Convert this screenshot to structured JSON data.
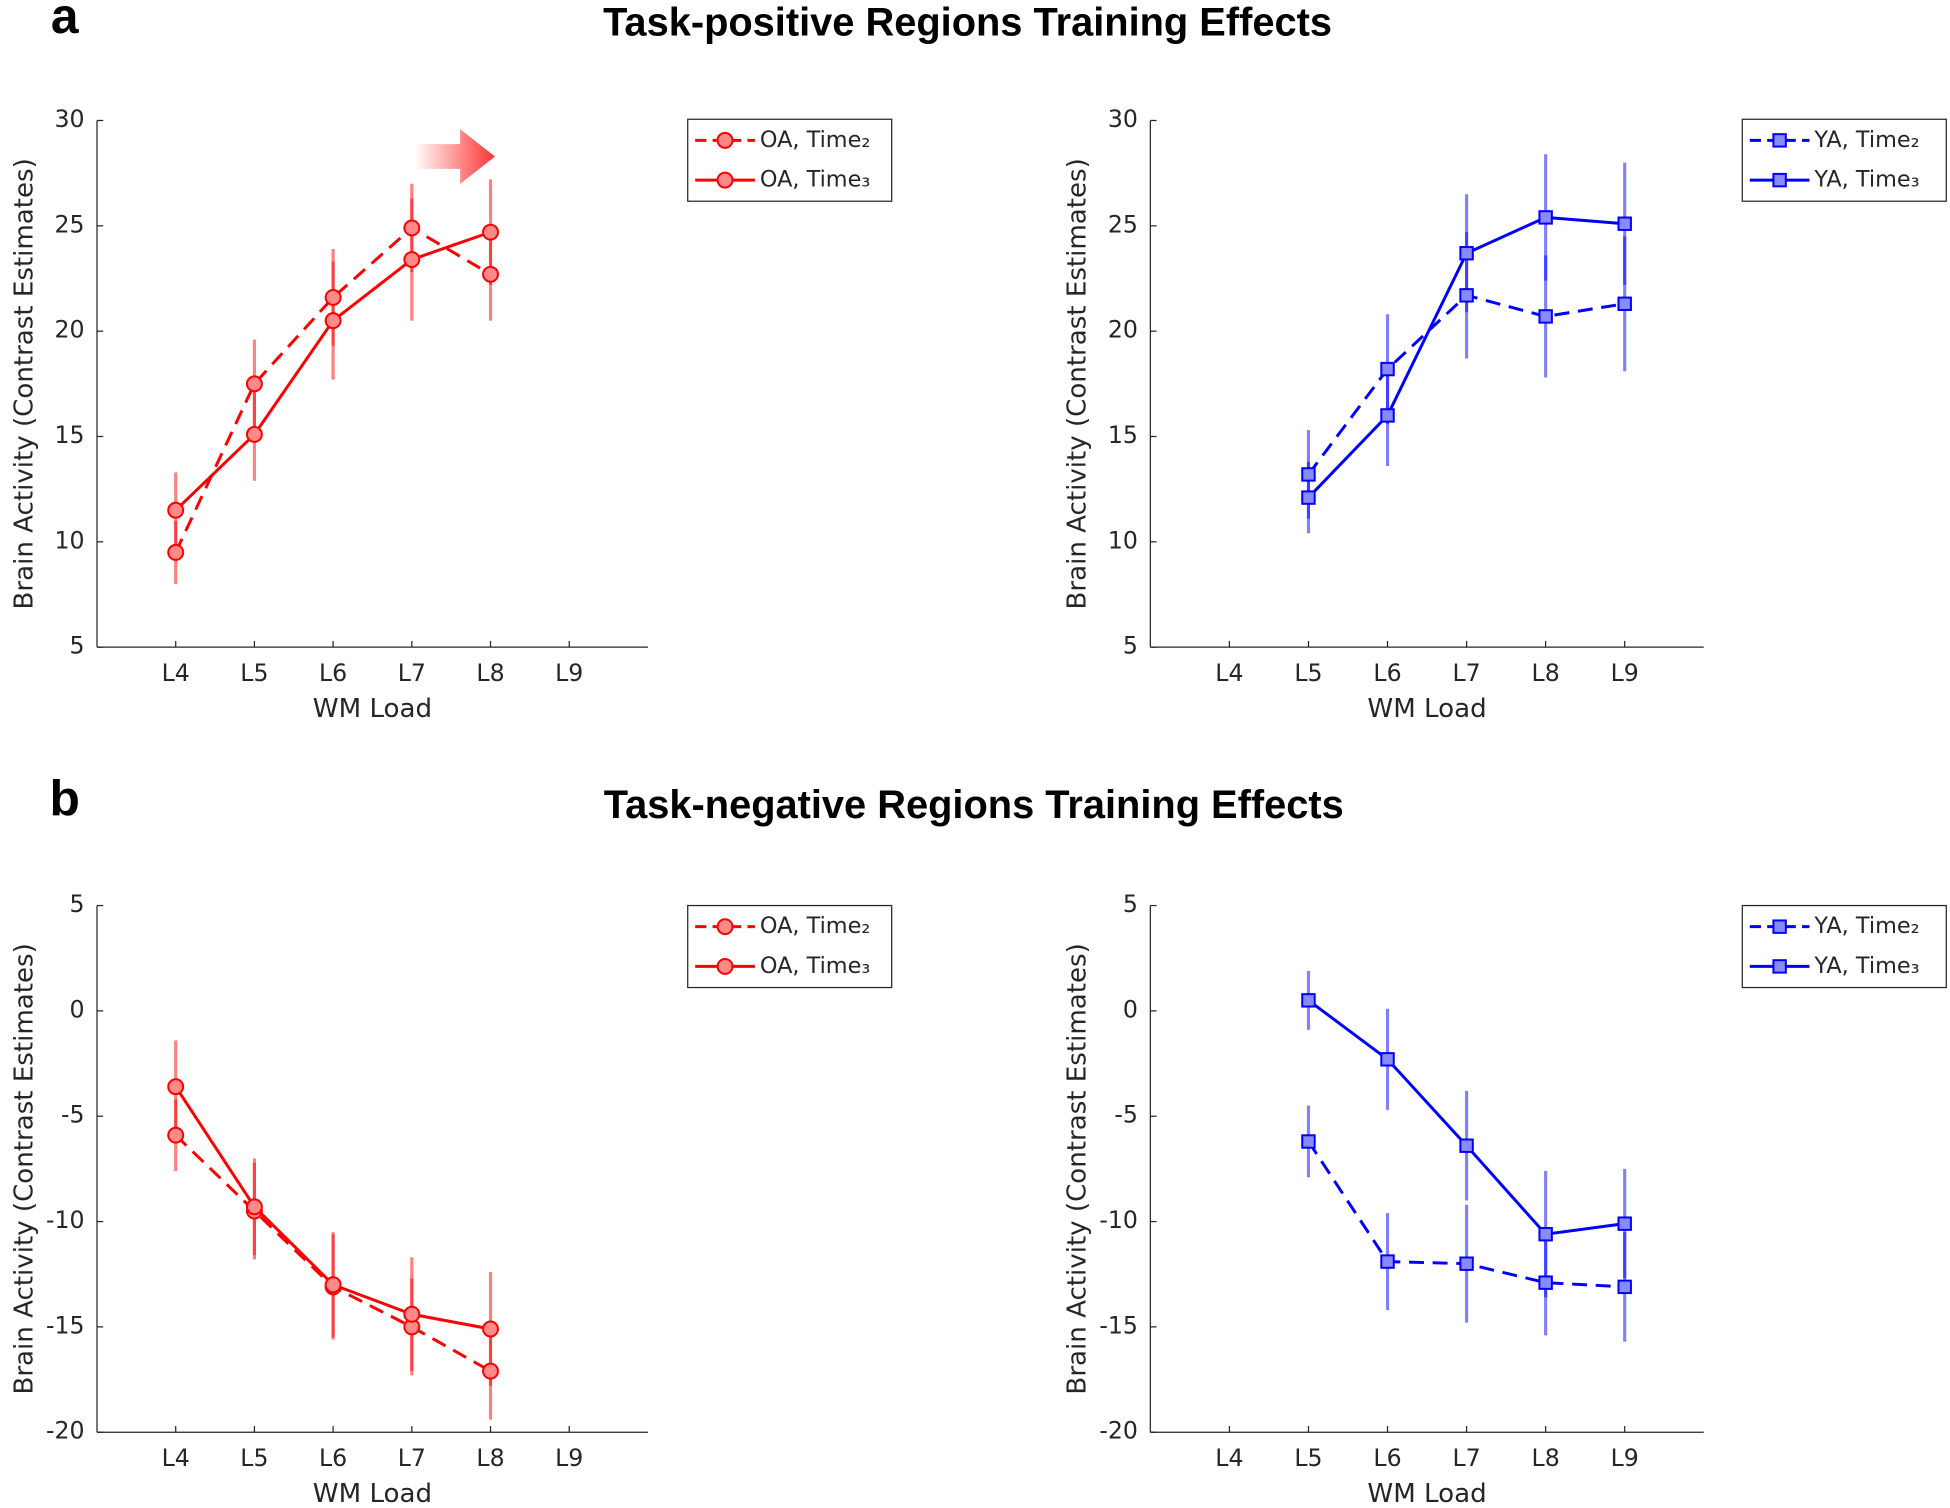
{
  "figure": {
    "panels": [
      {
        "label": "a",
        "title": "Task-positive Regions Training Effects"
      },
      {
        "label": "b",
        "title": "Task-negative Regions Training Effects"
      }
    ]
  },
  "chart_data": [
    {
      "type": "line",
      "xlabel": "WM Load",
      "ylabel": "Brain Activity (Contrast Estimates)",
      "categories": [
        "L4",
        "L5",
        "L6",
        "L7",
        "L8",
        "L9"
      ],
      "ylim": [
        5,
        30
      ],
      "yticks": [
        5,
        10,
        15,
        20,
        25,
        30
      ],
      "legend": "outside",
      "marker": "o",
      "series": [
        {
          "name": "OA, Time₂",
          "color": "#ff0000",
          "linestyle": "dashed",
          "values": [
            9.5,
            17.5,
            21.6,
            24.9,
            22.7,
            null
          ],
          "errors": [
            1.5,
            2.1,
            2.3,
            2.1,
            2.2,
            null
          ]
        },
        {
          "name": "OA, Time₃",
          "color": "#ff0000",
          "linestyle": "solid",
          "values": [
            11.5,
            15.1,
            20.5,
            23.4,
            24.7,
            null
          ],
          "errors": [
            1.8,
            2.2,
            2.8,
            2.9,
            2.5,
            null
          ]
        }
      ]
    },
    {
      "type": "line",
      "xlabel": "WM Load",
      "ylabel": "Brain Activity (Contrast Estimates)",
      "categories": [
        "L4",
        "L5",
        "L6",
        "L7",
        "L8",
        "L9"
      ],
      "ylim": [
        5,
        30
      ],
      "yticks": [
        5,
        10,
        15,
        20,
        25,
        30
      ],
      "legend": "outside",
      "marker": "s",
      "series": [
        {
          "name": "YA, Time₂",
          "color": "#0000ff",
          "linestyle": "dashed",
          "values": [
            null,
            13.2,
            18.2,
            21.7,
            20.7,
            21.3
          ],
          "errors": [
            null,
            2.1,
            2.6,
            3.0,
            2.9,
            3.2
          ]
        },
        {
          "name": "YA, Time₃",
          "color": "#0000ff",
          "linestyle": "solid",
          "values": [
            null,
            12.1,
            16.0,
            23.7,
            25.4,
            25.1
          ],
          "errors": [
            null,
            1.7,
            2.4,
            2.8,
            3.0,
            2.9
          ]
        }
      ]
    },
    {
      "type": "line",
      "xlabel": "WM Load",
      "ylabel": "Brain Activity (Contrast Estimates)",
      "categories": [
        "L4",
        "L5",
        "L6",
        "L7",
        "L8",
        "L9"
      ],
      "ylim": [
        -20,
        5
      ],
      "yticks": [
        -20,
        -15,
        -10,
        -5,
        0,
        5
      ],
      "legend": "outside",
      "marker": "o",
      "series": [
        {
          "name": "OA, Time₂",
          "color": "#ff0000",
          "linestyle": "dashed",
          "values": [
            -5.9,
            -9.5,
            -13.1,
            -15.0,
            -17.1,
            null
          ],
          "errors": [
            1.7,
            2.3,
            2.5,
            2.3,
            2.3,
            null
          ]
        },
        {
          "name": "OA, Time₃",
          "color": "#ff0000",
          "linestyle": "solid",
          "values": [
            -3.6,
            -9.3,
            -13.0,
            -14.4,
            -15.1,
            null
          ],
          "errors": [
            2.2,
            2.3,
            2.5,
            2.7,
            2.7,
            null
          ]
        }
      ]
    },
    {
      "type": "line",
      "xlabel": "WM Load",
      "ylabel": "Brain Activity (Contrast Estimates)",
      "categories": [
        "L4",
        "L5",
        "L6",
        "L7",
        "L8",
        "L9"
      ],
      "ylim": [
        -20,
        5
      ],
      "yticks": [
        -20,
        -15,
        -10,
        -5,
        0,
        5
      ],
      "legend": "outside",
      "marker": "s",
      "series": [
        {
          "name": "YA, Time₂",
          "color": "#0000ff",
          "linestyle": "dashed",
          "values": [
            null,
            -6.2,
            -11.9,
            -12.0,
            -12.9,
            -13.1
          ],
          "errors": [
            null,
            1.7,
            2.3,
            2.8,
            2.5,
            2.6
          ]
        },
        {
          "name": "YA, Time₃",
          "color": "#0000ff",
          "linestyle": "solid",
          "values": [
            null,
            0.5,
            -2.3,
            -6.4,
            -10.6,
            -10.1
          ],
          "errors": [
            null,
            1.4,
            2.4,
            2.6,
            3.0,
            2.6
          ]
        }
      ]
    }
  ]
}
